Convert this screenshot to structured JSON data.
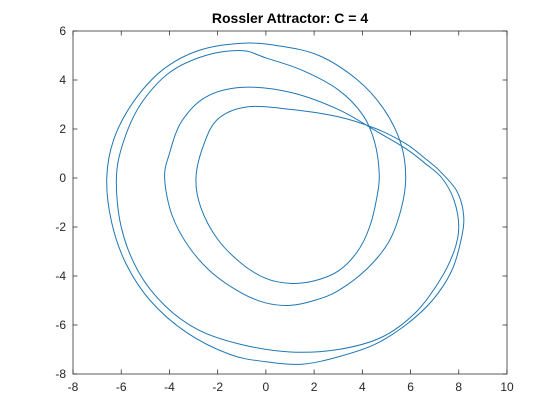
{
  "chart_data": {
    "type": "line",
    "title": "Rossler Attractor: C = 4",
    "xlabel": "",
    "ylabel": "",
    "xlim": [
      -8,
      10
    ],
    "ylim": [
      -8,
      6
    ],
    "xticks": [
      -8,
      -6,
      -4,
      -2,
      0,
      2,
      4,
      6,
      8,
      10
    ],
    "yticks": [
      -8,
      -6,
      -4,
      -2,
      0,
      2,
      4,
      6
    ],
    "grid": false,
    "series_color": "#1f77b4",
    "series": [
      {
        "points": [
          [
            7.1,
            0.4
          ],
          [
            6.6,
            0.8
          ],
          [
            5.8,
            1.4
          ],
          [
            4.6,
            2.0
          ],
          [
            3.0,
            2.5
          ],
          [
            1.0,
            2.8
          ],
          [
            -0.8,
            2.9
          ],
          [
            -2.0,
            2.4
          ],
          [
            -2.6,
            1.3
          ],
          [
            -2.9,
            0.0
          ],
          [
            -2.7,
            -1.2
          ],
          [
            -2.0,
            -2.5
          ],
          [
            -1.0,
            -3.5
          ],
          [
            0.0,
            -4.1
          ],
          [
            1.0,
            -4.3
          ],
          [
            2.0,
            -4.2
          ],
          [
            3.0,
            -3.8
          ],
          [
            3.8,
            -3.0
          ],
          [
            4.3,
            -2.0
          ],
          [
            4.6,
            -0.8
          ],
          [
            4.7,
            0.2
          ],
          [
            4.5,
            1.5
          ],
          [
            4.0,
            2.6
          ],
          [
            3.0,
            3.6
          ],
          [
            1.5,
            4.4
          ],
          [
            0.0,
            4.9
          ],
          [
            -1.0,
            5.2
          ],
          [
            -2.5,
            5.0
          ],
          [
            -4.0,
            4.3
          ],
          [
            -5.2,
            3.0
          ],
          [
            -5.9,
            1.5
          ],
          [
            -6.2,
            0.0
          ],
          [
            -6.0,
            -2.0
          ],
          [
            -5.3,
            -3.8
          ],
          [
            -4.2,
            -5.2
          ],
          [
            -2.8,
            -6.2
          ],
          [
            -1.0,
            -6.8
          ],
          [
            1.0,
            -7.1
          ],
          [
            3.0,
            -7.0
          ],
          [
            4.8,
            -6.5
          ],
          [
            6.2,
            -5.5
          ],
          [
            7.2,
            -4.2
          ],
          [
            7.8,
            -3.0
          ],
          [
            8.0,
            -2.0
          ],
          [
            7.8,
            -0.9
          ],
          [
            7.3,
            0.0
          ],
          [
            6.6,
            0.6
          ],
          [
            5.8,
            1.2
          ],
          [
            4.6,
            1.9
          ],
          [
            3.0,
            2.8
          ],
          [
            1.0,
            3.5
          ],
          [
            -1.0,
            3.7
          ],
          [
            -2.5,
            3.3
          ],
          [
            -3.5,
            2.3
          ],
          [
            -4.0,
            1.0
          ],
          [
            -4.2,
            0.0
          ],
          [
            -3.9,
            -1.5
          ],
          [
            -3.2,
            -2.8
          ],
          [
            -2.2,
            -3.9
          ],
          [
            -1.0,
            -4.7
          ],
          [
            0.0,
            -5.1
          ],
          [
            1.0,
            -5.2
          ],
          [
            2.0,
            -5.0
          ],
          [
            3.0,
            -4.6
          ],
          [
            4.2,
            -3.7
          ],
          [
            5.1,
            -2.6
          ],
          [
            5.6,
            -1.3
          ],
          [
            5.8,
            0.0
          ],
          [
            5.6,
            1.4
          ],
          [
            4.9,
            2.8
          ],
          [
            3.8,
            4.0
          ],
          [
            2.2,
            5.0
          ],
          [
            0.5,
            5.4
          ],
          [
            -1.0,
            5.5
          ],
          [
            -2.8,
            5.2
          ],
          [
            -4.3,
            4.4
          ],
          [
            -5.5,
            3.1
          ],
          [
            -6.3,
            1.6
          ],
          [
            -6.6,
            0.0
          ],
          [
            -6.4,
            -1.8
          ],
          [
            -5.8,
            -3.5
          ],
          [
            -4.8,
            -5.0
          ],
          [
            -3.3,
            -6.3
          ],
          [
            -1.5,
            -7.2
          ],
          [
            0.0,
            -7.5
          ],
          [
            1.5,
            -7.6
          ],
          [
            3.0,
            -7.3
          ],
          [
            4.5,
            -6.8
          ],
          [
            5.8,
            -6.0
          ],
          [
            6.9,
            -5.0
          ],
          [
            7.7,
            -3.8
          ],
          [
            8.1,
            -2.5
          ],
          [
            8.2,
            -1.5
          ],
          [
            7.9,
            -0.5
          ],
          [
            7.1,
            0.4
          ]
        ]
      }
    ]
  }
}
